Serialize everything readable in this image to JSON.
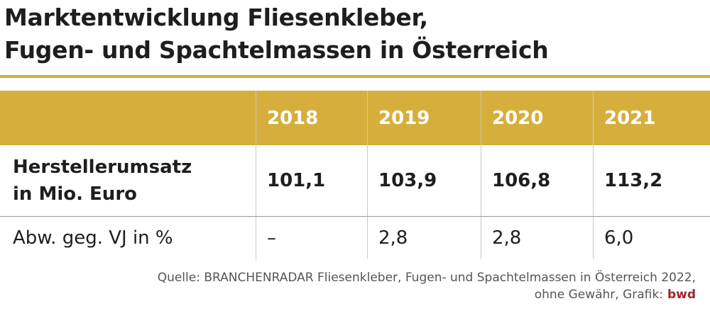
{
  "header": {
    "title": [
      "Marktentwicklung Fliesenkleber,",
      "Fugen- und Spachtelmassen in Österreich"
    ]
  },
  "table": {
    "columns": [
      "2018",
      "2019",
      "2020",
      "2021"
    ],
    "rows": [
      {
        "label": [
          "Herstellerumsatz",
          "in Mio. Euro"
        ],
        "cells": [
          "101,1",
          "103,9",
          "106,8",
          "113,2"
        ]
      },
      {
        "label": [
          "Abw. geg. VJ in %"
        ],
        "cells": [
          "–",
          "2,8",
          "2,8",
          "6,0"
        ]
      }
    ]
  },
  "footer": {
    "source": [
      "Quelle: BRANCHENRADAR Fliesenkleber, Fugen- und Spachtelmassen in Österreich 2022,",
      "ohne Gewähr, Grafik:"
    ],
    "credit": "bwd"
  }
}
